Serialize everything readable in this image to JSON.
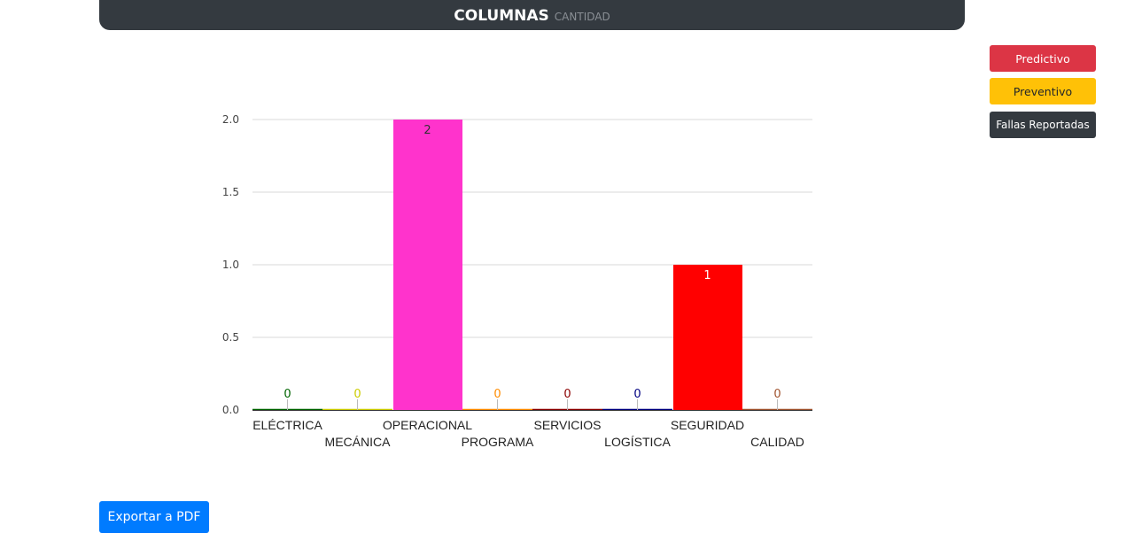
{
  "header": {
    "title": "COLUMNAS",
    "subtitle": "CANTIDAD"
  },
  "legend": {
    "predictivo": "Predictivo",
    "preventivo": "Preventivo",
    "fallas": "Fallas Reportadas"
  },
  "export_label": "Exportar a PDF",
  "colors": {
    "header_bg": "#343a40",
    "predictivo": "#dc3545",
    "preventivo": "#ffc107",
    "fallas": "#343a40",
    "export": "#007bff"
  },
  "chart_data": {
    "type": "bar",
    "title": "",
    "xlabel": "",
    "ylabel": "",
    "ylim": [
      0,
      2
    ],
    "yticks": [
      "0.0",
      "0.5",
      "1.0",
      "1.5",
      "2.0"
    ],
    "grid": true,
    "categories": [
      "ELÉCTRICA",
      "MECÁNICA",
      "OPERACIONAL",
      "PROGRAMA",
      "SERVICIOS",
      "LOGÍSTICA",
      "SEGURIDAD",
      "CALIDAD"
    ],
    "values": [
      0,
      0,
      2,
      0,
      0,
      0,
      1,
      0
    ],
    "labels": [
      "0",
      "0",
      "2",
      "0",
      "0",
      "0",
      "1",
      "0"
    ],
    "colors": [
      "#006400",
      "#cccc00",
      "#ff33cc",
      "#ff8c00",
      "#8b0000",
      "#000080",
      "#ff0000",
      "#a0522d"
    ]
  }
}
